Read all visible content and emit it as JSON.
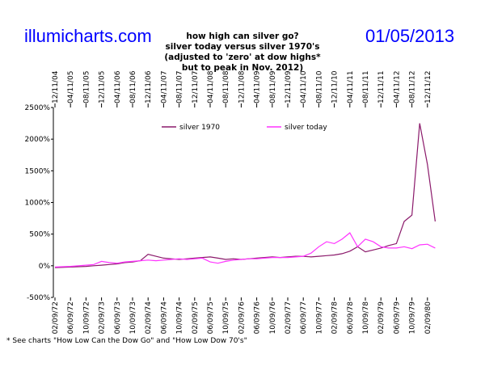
{
  "chart_data": {
    "type": "line",
    "site": "illumicharts.com",
    "date": "01/05/2013",
    "title": "how high can silver go?",
    "subtitle": [
      "silver today versus silver 1970's",
      "(adjusted to 'zero' at dow highs*",
      "but to peak in Nov. 2012)"
    ],
    "footnote": "* See charts \"How Low Can the Dow Go\" and \"How Low Dow 70's\"",
    "categories_top": [
      "12/11/04",
      null,
      "04/11/05",
      null,
      "08/11/05",
      null,
      "12/11/05",
      null,
      "04/11/06",
      null,
      "08/11/06",
      null,
      "12/11/06",
      null,
      "04/11/07",
      null,
      "08/11/07",
      null,
      "12/11/07",
      null,
      "04/11/08",
      null,
      "08/11/08",
      null,
      "12/11/08",
      null,
      "04/11/09",
      null,
      "08/11/09",
      null,
      "12/11/09",
      null,
      "04/11/10",
      null,
      "08/11/10",
      null,
      "12/11/10",
      null,
      "04/11/11",
      null,
      "08/11/11",
      null,
      "12/11/11",
      null,
      "04/11/12",
      null,
      "08/11/12",
      null,
      "12/11/12",
      null
    ],
    "categories": [
      "02/09/72",
      null,
      "06/09/72",
      null,
      "10/09/72",
      null,
      "02/09/73",
      null,
      "06/09/73",
      null,
      "10/09/73",
      null,
      "02/09/74",
      null,
      "06/09/74",
      null,
      "10/09/74",
      null,
      "02/09/75",
      null,
      "06/09/75",
      null,
      "10/09/75",
      null,
      "02/09/76",
      null,
      "06/09/76",
      null,
      "10/09/76",
      null,
      "02/09/77",
      null,
      "06/09/77",
      null,
      "10/09/77",
      null,
      "02/09/78",
      null,
      "06/09/78",
      null,
      "10/09/78",
      null,
      "02/09/79",
      null,
      "06/09/79",
      null,
      "10/09/79",
      null,
      "02/09/80",
      null
    ],
    "series": [
      {
        "name": "silver 1970",
        "color": "#8b1a6b",
        "values": [
          -30,
          -25,
          -20,
          -15,
          -10,
          0,
          10,
          20,
          30,
          50,
          60,
          80,
          180,
          150,
          120,
          110,
          100,
          110,
          120,
          130,
          140,
          120,
          100,
          110,
          100,
          110,
          120,
          130,
          140,
          130,
          140,
          150,
          150,
          140,
          150,
          160,
          170,
          190,
          230,
          300,
          220,
          250,
          280,
          320,
          350,
          700,
          800,
          2250,
          1600,
          700
        ]
      },
      {
        "name": "silver today",
        "color": "#ff33ff",
        "values": [
          -20,
          -15,
          -10,
          0,
          10,
          20,
          70,
          50,
          40,
          60,
          70,
          80,
          90,
          80,
          90,
          100,
          110,
          100,
          110,
          120,
          60,
          40,
          70,
          90,
          100,
          110,
          110,
          120,
          130,
          130,
          130,
          140,
          150,
          200,
          300,
          380,
          350,
          420,
          520,
          300,
          420,
          380,
          300,
          280,
          280,
          300,
          270,
          330,
          340,
          280
        ]
      }
    ],
    "ylim": [
      -500,
      2500
    ],
    "yticks": [
      {
        "value": -500,
        "label": "-500%"
      },
      {
        "value": 0,
        "label": "0%"
      },
      {
        "value": 500,
        "label": "500%"
      },
      {
        "value": 1000,
        "label": "1000%"
      },
      {
        "value": 1500,
        "label": "1500%"
      },
      {
        "value": 2000,
        "label": "2000%"
      },
      {
        "value": 2500,
        "label": "2500%"
      }
    ],
    "grid": false
  }
}
